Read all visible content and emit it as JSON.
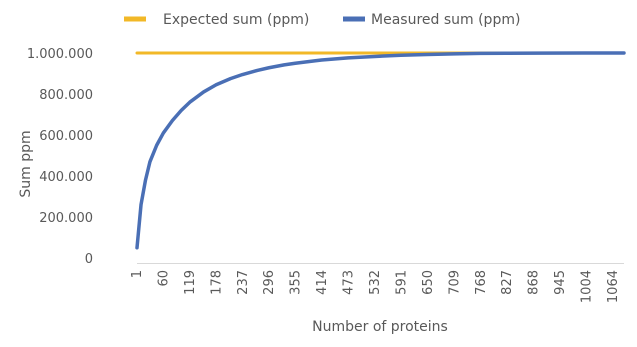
{
  "chart_data": {
    "type": "line",
    "xlabel": "Number of proteins",
    "ylabel": "Sum ppm",
    "ylim": [
      0,
      1000000
    ],
    "y_ticks": [
      "0",
      "200.000",
      "400.000",
      "600.000",
      "800.000",
      "1.000.000"
    ],
    "x_tick_labels": [
      "1",
      "60",
      "119",
      "178",
      "237",
      "296",
      "355",
      "414",
      "473",
      "532",
      "591",
      "650",
      "709",
      "768",
      "827",
      "868",
      "945",
      "1004",
      "1064"
    ],
    "x_range": [
      1,
      1090
    ],
    "legend_position": "top",
    "grid": false,
    "series": [
      {
        "name": "Expected sum (ppm)",
        "color": "#F2B827",
        "x": [
          1,
          1090
        ],
        "y": [
          1000000,
          1000000
        ]
      },
      {
        "name": "Measured sum (ppm)",
        "color": "#4A6FB5",
        "x": [
          1,
          10,
          20,
          30,
          45,
          60,
          80,
          100,
          119,
          150,
          178,
          210,
          237,
          270,
          296,
          330,
          355,
          400,
          414,
          473,
          532,
          591,
          650,
          709,
          768,
          827,
          900,
          1000,
          1090
        ],
        "y": [
          50000,
          260000,
          380000,
          470000,
          550000,
          610000,
          670000,
          720000,
          760000,
          810000,
          845000,
          875000,
          895000,
          915000,
          928000,
          942000,
          950000,
          962000,
          966000,
          976000,
          983000,
          989000,
          993000,
          996000,
          998000,
          999000,
          999500,
          999900,
          1000000
        ]
      }
    ]
  }
}
